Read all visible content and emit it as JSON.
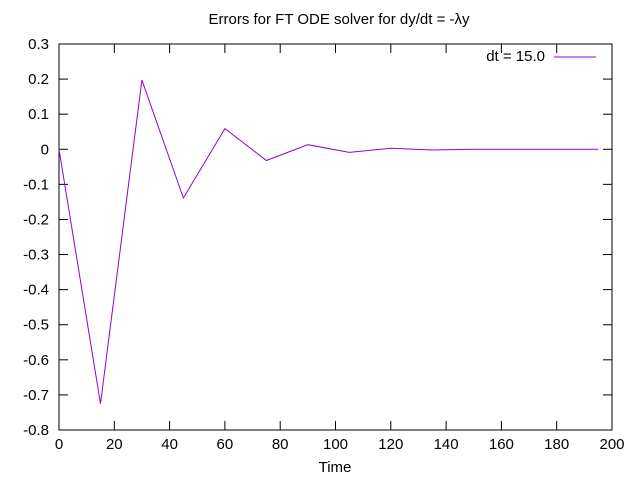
{
  "chart_data": {
    "type": "line",
    "title": "Errors for FT ODE solver for dy/dt = -λy",
    "xlabel": "Time",
    "ylabel": "",
    "xlim": [
      0,
      200
    ],
    "ylim": [
      -0.8,
      0.3
    ],
    "xticks": [
      0,
      20,
      40,
      60,
      80,
      100,
      120,
      140,
      160,
      180,
      200
    ],
    "yticks": [
      0.3,
      0.2,
      0.1,
      0,
      -0.1,
      -0.2,
      -0.3,
      -0.4,
      -0.5,
      -0.6,
      -0.7,
      -0.8
    ],
    "xtick_labels": [
      "0",
      "20",
      "40",
      "60",
      "80",
      "100",
      "120",
      "140",
      "160",
      "180",
      "200"
    ],
    "ytick_labels": [
      "0.3",
      "0.2",
      "0.1",
      "0",
      "-0.1",
      "-0.2",
      "-0.3",
      "-0.4",
      "-0.5",
      "-0.6",
      "-0.7",
      "-0.8"
    ],
    "grid": false,
    "legend_position": "top-right",
    "series": [
      {
        "name": "dt = 15.0",
        "color": "#9400d3",
        "x": [
          0,
          15,
          30,
          45,
          60,
          75,
          90,
          105,
          120,
          135,
          150,
          165,
          180,
          195
        ],
        "y": [
          0,
          -0.725,
          0.197,
          -0.139,
          0.059,
          -0.032,
          0.013,
          -0.009,
          0.003,
          -0.002,
          0.0,
          0.0,
          0.0,
          0.0
        ]
      }
    ]
  }
}
